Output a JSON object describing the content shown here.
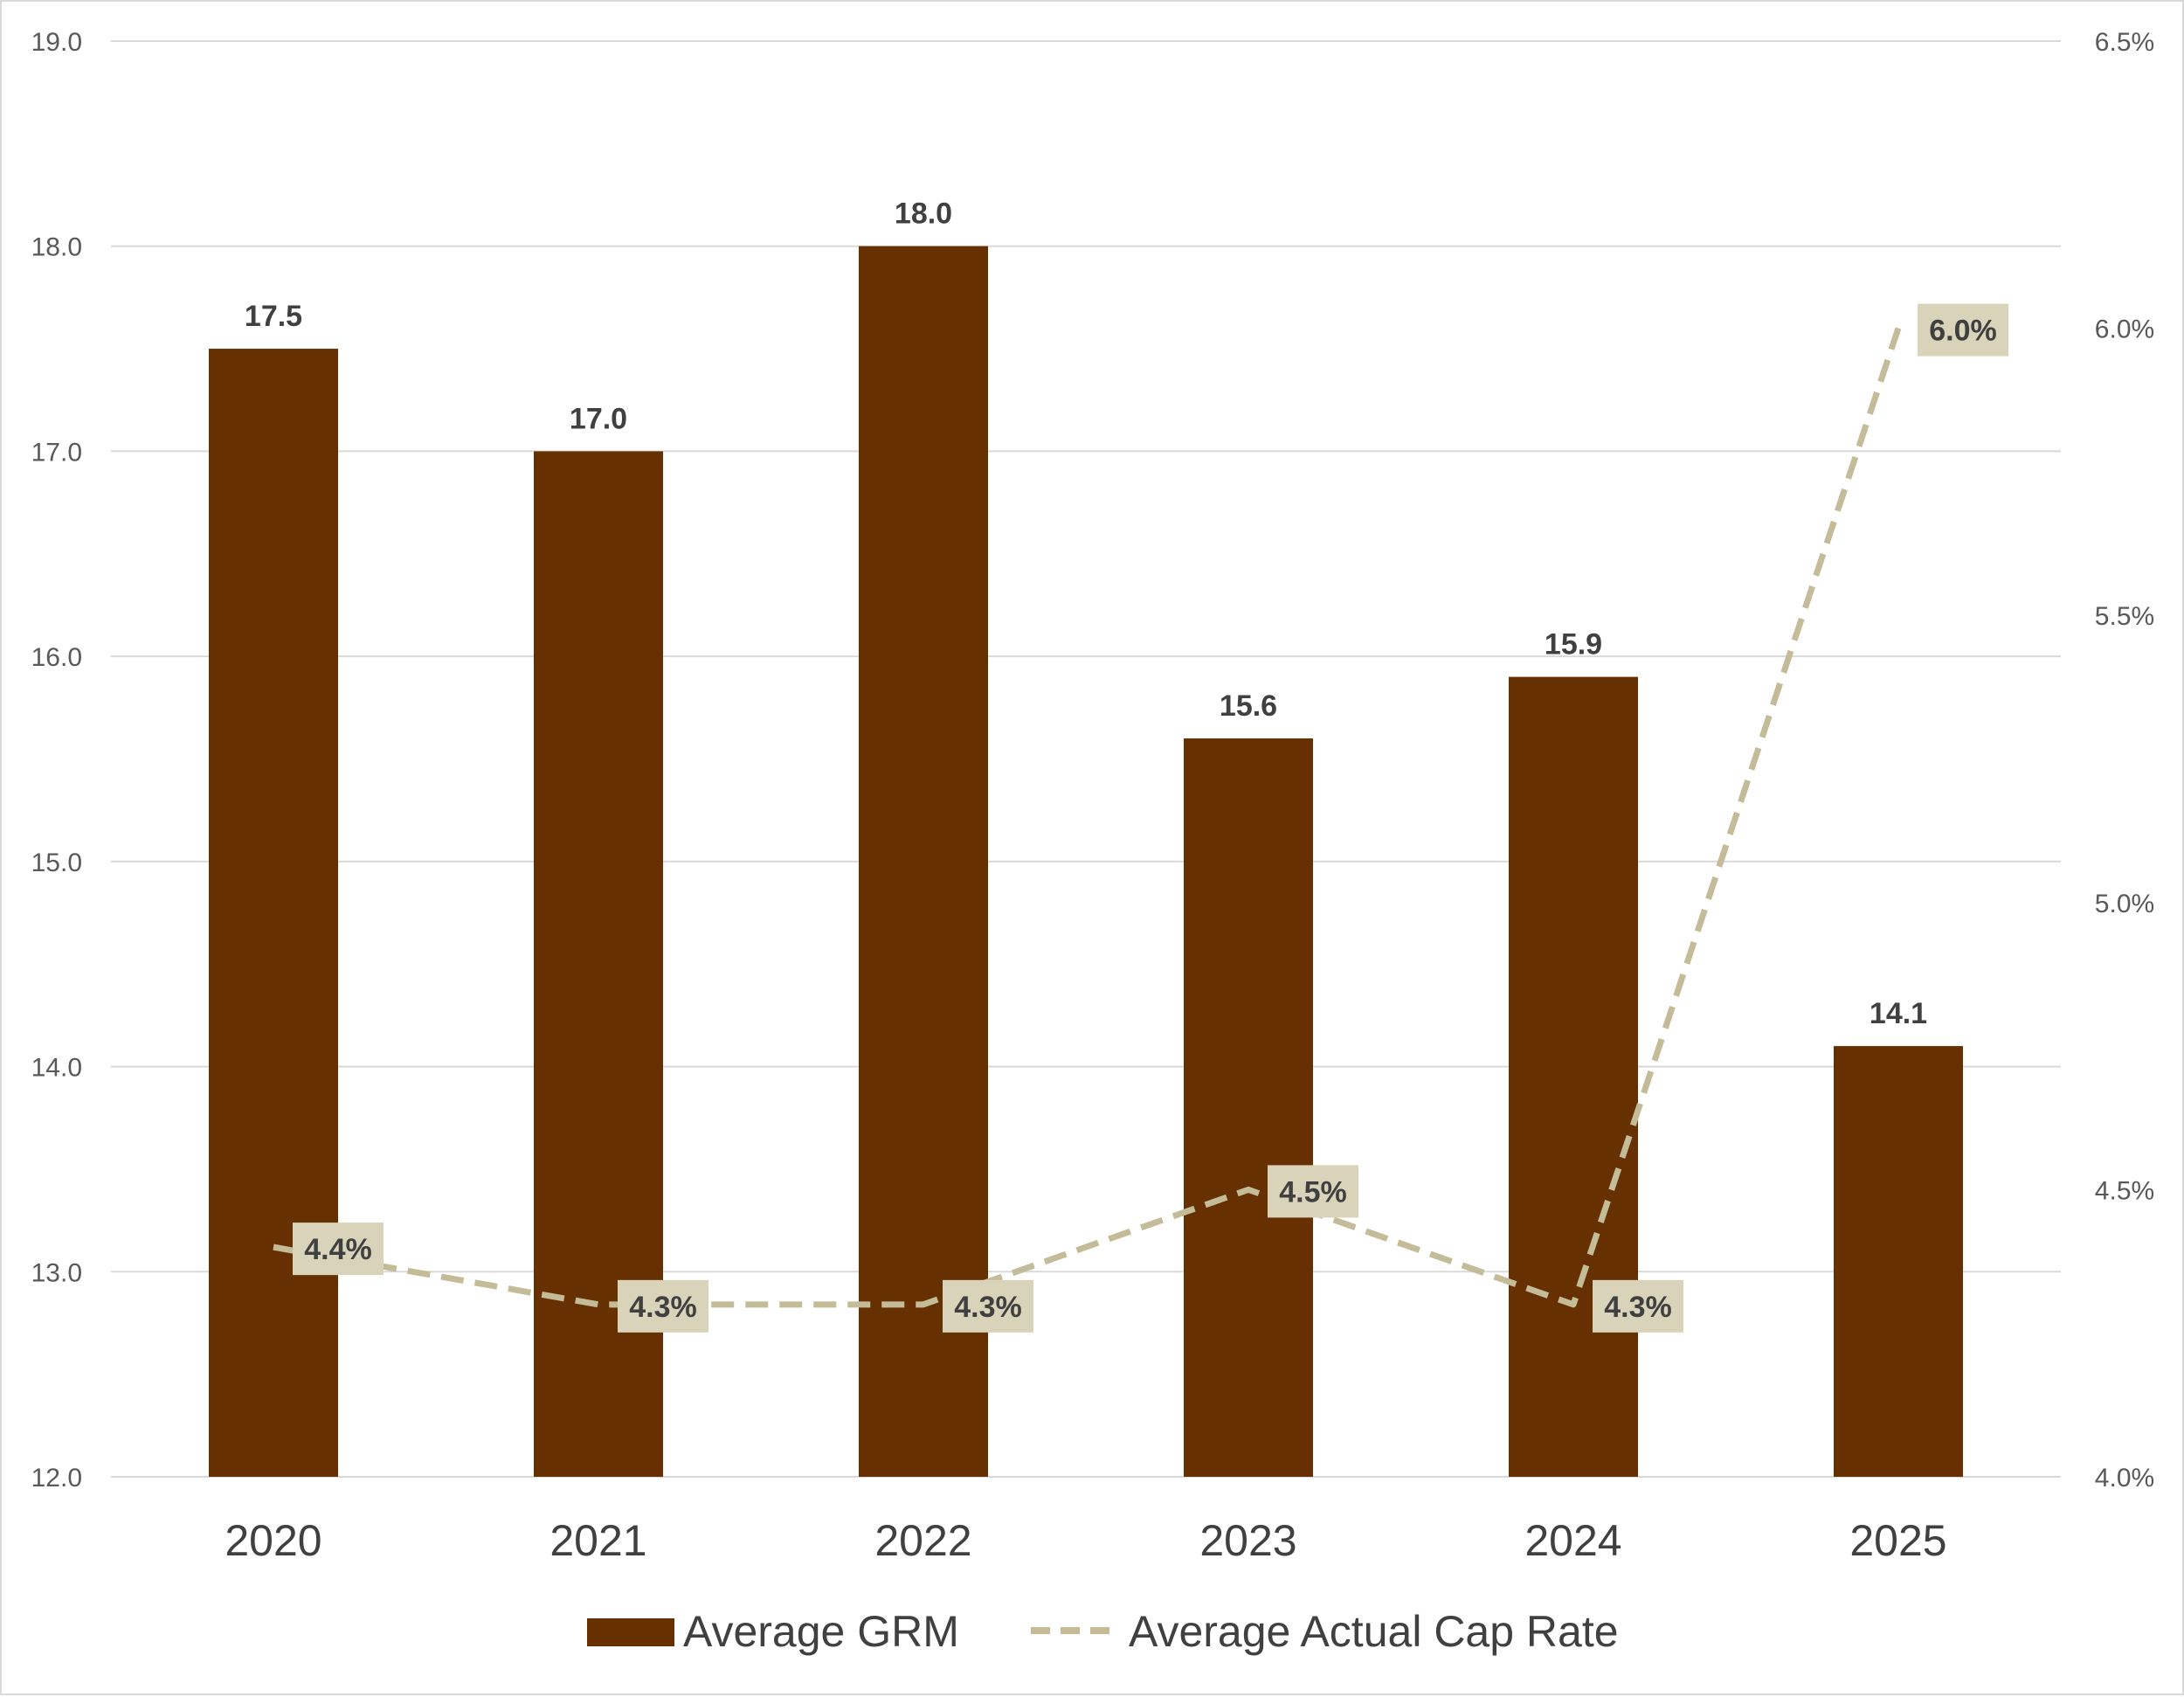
{
  "chart_data": {
    "type": "bar",
    "categories": [
      "2020",
      "2021",
      "2022",
      "2023",
      "2024",
      "2025"
    ],
    "series": [
      {
        "name": "Average GRM",
        "type": "bar",
        "axis": "left",
        "values": [
          17.5,
          17.0,
          18.0,
          15.6,
          15.9,
          14.1
        ],
        "labels": [
          "17.5",
          "17.0",
          "18.0",
          "15.6",
          "15.9",
          "14.1"
        ],
        "color": "#663000"
      },
      {
        "name": "Average Actual Cap Rate",
        "type": "line",
        "axis": "right",
        "line_style": "dashed",
        "values": [
          4.4,
          4.3,
          4.3,
          4.5,
          4.3,
          6.0
        ],
        "labels": [
          "4.4%",
          "4.3%",
          "4.3%",
          "4.5%",
          "4.3%",
          "6.0%"
        ],
        "color": "#c4bc99",
        "label_box_color": "#d9d3b9"
      }
    ],
    "y_left": {
      "ylim": [
        12.0,
        19.0
      ],
      "ticks": [
        "12.0",
        "13.0",
        "14.0",
        "15.0",
        "16.0",
        "17.0",
        "18.0",
        "19.0"
      ]
    },
    "y_right": {
      "ylim": [
        4.0,
        6.5
      ],
      "ticks": [
        "4.0%",
        "4.5%",
        "5.0%",
        "5.5%",
        "6.0%",
        "6.5%"
      ]
    },
    "title": "",
    "xlabel": "",
    "ylabel": "",
    "grid": true,
    "legend_position": "bottom-center",
    "colors": {
      "grid": "#d9d9d9",
      "text": "#404040",
      "axis_text": "#595959"
    }
  }
}
